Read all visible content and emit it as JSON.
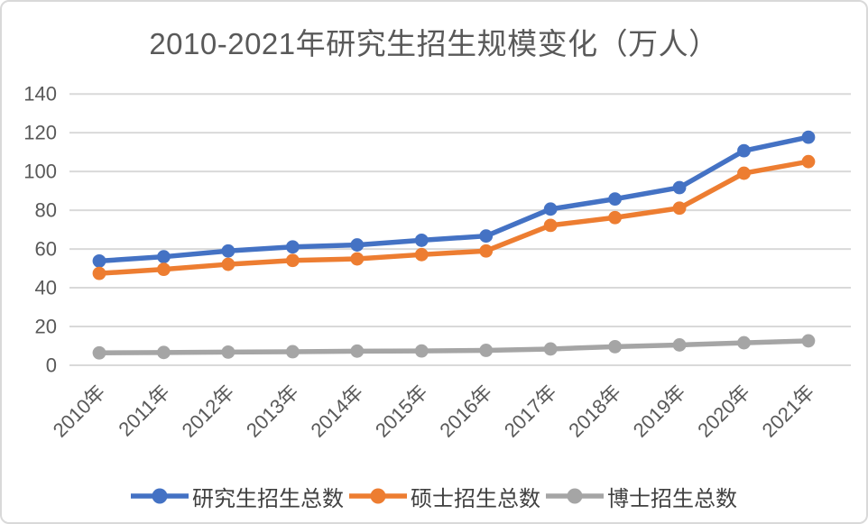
{
  "frame": {
    "background": "#FFFFFF",
    "border_color": "#D9D9D9"
  },
  "chart_data": {
    "type": "line",
    "title": "2010-2021年研究生招生规模变化（万人）",
    "title_color": "#595959",
    "categories": [
      "2010年",
      "2011年",
      "2012年",
      "2013年",
      "2014年",
      "2015年",
      "2016年",
      "2017年",
      "2018年",
      "2019年",
      "2020年",
      "2021年"
    ],
    "series": [
      {
        "name": "研究生招生总数",
        "color": "#4472C4",
        "values": [
          53.8,
          56.0,
          59.0,
          61.1,
          62.1,
          64.5,
          66.7,
          80.6,
          85.8,
          91.7,
          110.7,
          117.7
        ]
      },
      {
        "name": "硕士招生总数",
        "color": "#ED7D31",
        "values": [
          47.4,
          49.5,
          52.1,
          54.1,
          54.9,
          57.1,
          59.0,
          72.2,
          76.2,
          81.1,
          99.1,
          105.1
        ]
      },
      {
        "name": "博士招生总数",
        "color": "#A5A5A5",
        "values": [
          6.4,
          6.6,
          6.8,
          7.0,
          7.3,
          7.4,
          7.7,
          8.4,
          9.6,
          10.5,
          11.6,
          12.6
        ]
      }
    ],
    "y_ticks": [
      140,
      120,
      100,
      80,
      60,
      40,
      20,
      0
    ],
    "ylim": [
      0,
      140
    ],
    "xlabel": "",
    "ylabel": "",
    "grid": true,
    "gridline_color": "#D9D9D9",
    "axis_label_color": "#595959",
    "legend_text_color": "#404040",
    "legend_position": "bottom",
    "marker": "circle"
  }
}
